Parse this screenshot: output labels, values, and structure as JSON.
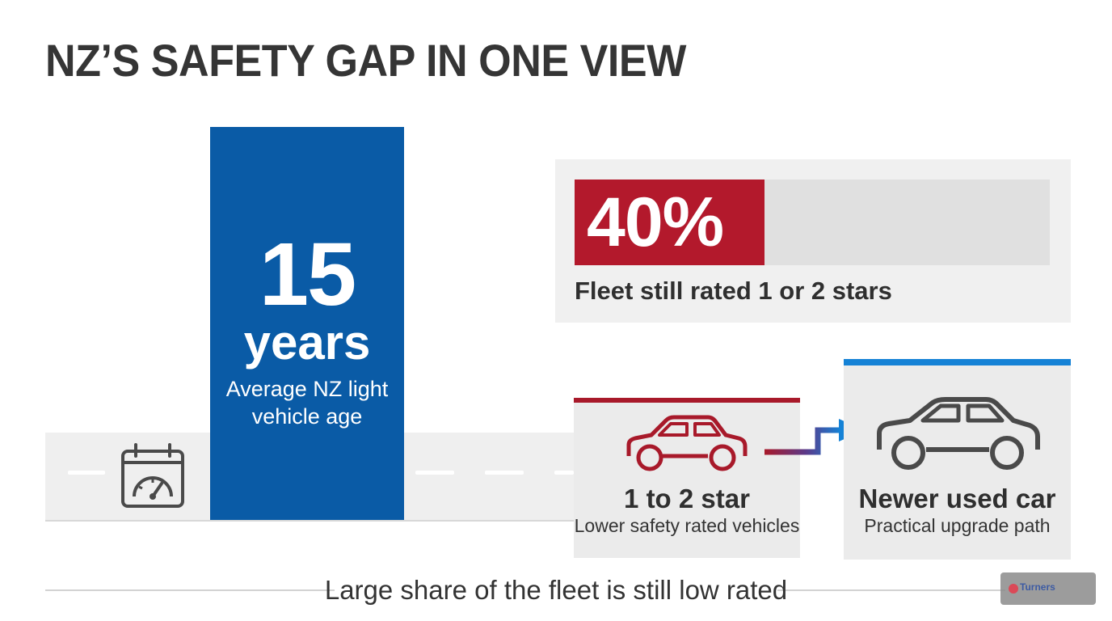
{
  "title": "NZ’S SAFETY GAP IN ONE VIEW",
  "age_stat": {
    "value": "15",
    "unit": "years",
    "caption_line1": "Average NZ light",
    "caption_line2": "vehicle age"
  },
  "fleet_stat": {
    "value": "40%",
    "fraction": 0.4,
    "caption": "Fleet still rated 1 or 2 stars"
  },
  "old_vehicles": {
    "title": "1 to 2 star",
    "subtitle": "Lower safety rated vehicles"
  },
  "new_vehicles": {
    "title": "Newer used car",
    "subtitle": "Practical upgrade path"
  },
  "footer": "Large share of the fleet is still low rated",
  "logo": {
    "text": "Turners"
  },
  "icons": {
    "road": "calendar-gauge-icon",
    "old_car": "car-icon",
    "new_car": "car-icon",
    "arrow": "upgrade-arrow-icon"
  },
  "colors": {
    "blue": "#0a5ba6",
    "red": "#b3192c",
    "accent_blue": "#1582d6",
    "dark_text": "#353535"
  }
}
